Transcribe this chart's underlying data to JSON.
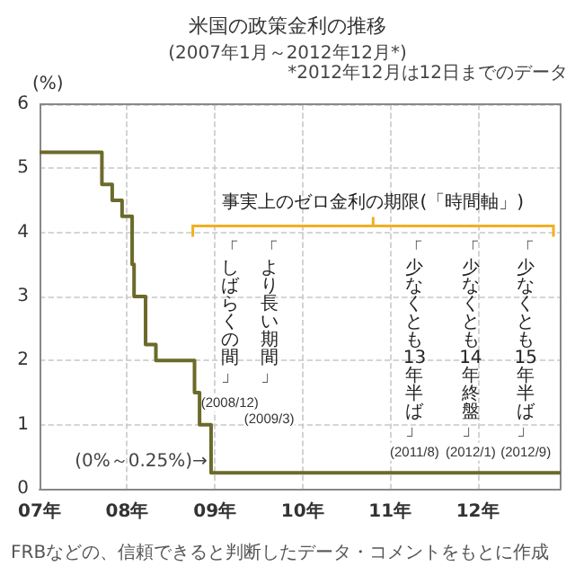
{
  "chart_data": {
    "type": "step",
    "title": "米国の政策金利の推移",
    "subtitle": "(2007年1月～2012年12月*)",
    "ylabel": "(%)",
    "x": [
      "2007-01-01",
      "2007-09-18",
      "2007-10-31",
      "2007-12-11",
      "2008-01-22",
      "2008-01-30",
      "2008-03-18",
      "2008-04-30",
      "2008-10-08",
      "2008-10-29",
      "2008-12-16",
      "2012-12-12"
    ],
    "series": [
      {
        "color": "#6b6a2a",
        "values": [
          5.25,
          4.75,
          4.5,
          4.25,
          3.5,
          3.0,
          2.25,
          2.0,
          1.5,
          1.0,
          0.25,
          0.25
        ]
      }
    ],
    "xlim": [
      "2007-01-01",
      "2012-12-12"
    ],
    "xticks": [
      {
        "value": "2007-01-01",
        "label": "07年"
      },
      {
        "value": "2008-01-01",
        "label": "08年"
      },
      {
        "value": "2009-01-01",
        "label": "09年"
      },
      {
        "value": "2010-01-01",
        "label": "10年"
      },
      {
        "value": "2011-01-01",
        "label": "11年"
      },
      {
        "value": "2012-01-01",
        "label": "12年"
      }
    ],
    "ylim": [
      0,
      6
    ],
    "yticks": [
      0,
      1,
      2,
      3,
      4,
      5,
      6
    ],
    "grid": true,
    "line_style": "solid",
    "marker": "none",
    "annotations": [
      "事実上のゼロ金利の期限(「時間軸」)",
      "「しばらくの間」",
      "「より長い期間」",
      "「少なくとも13年半ば」",
      "「少なくとも14年終盤」",
      "「少なくとも15年半ば」",
      "(2008/12)",
      "(2009/3)",
      "(2011/8)",
      "(2012/1)",
      "(2012/9)",
      {
        "text": "(0%～0.25%)→",
        "x": "2008-12-16",
        "y": 0.25
      },
      "*2012年12月は12日までのデータ",
      "FRBなどの、信頼できると判断したデータ・コメントをもとに作成"
    ]
  }
}
